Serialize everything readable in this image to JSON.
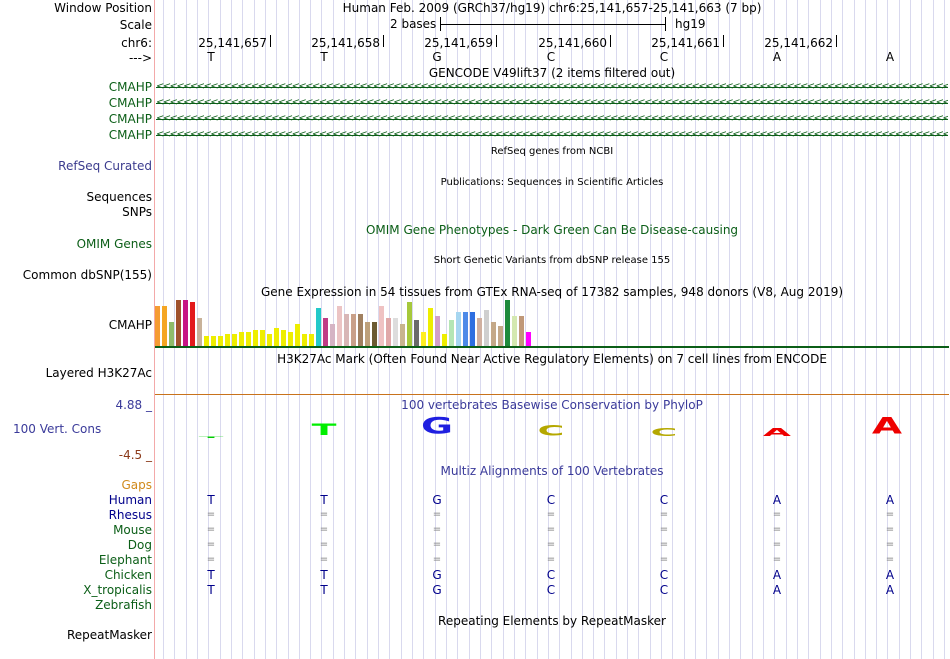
{
  "header": {
    "window_position_label": "Window Position",
    "window_position_value": "Human Feb. 2009 (GRCh37/hg19)   chr6:25,141,657-25,141,663 (7 bp)",
    "scale_label": "Scale",
    "scale_left": "2 bases",
    "scale_right": "hg19",
    "chrom_label": "chr6:",
    "strand_label": "--->",
    "coords": [
      "25,141,657",
      "25,141,658",
      "25,141,659",
      "25,141,660",
      "25,141,661",
      "25,141,662"
    ],
    "bases": [
      "T",
      "T",
      "G",
      "C",
      "C",
      "A",
      "A"
    ]
  },
  "gencode": {
    "title": "GENCODE V49lift37 (2 items filtered out)",
    "rows": [
      "CMAHP",
      "CMAHP",
      "CMAHP",
      "CMAHP"
    ]
  },
  "refseq": {
    "title": "RefSeq genes from NCBI",
    "label": "RefSeq Curated"
  },
  "publications": {
    "title": "Publications: Sequences in Scientific Articles",
    "label1": "Sequences",
    "label2": "SNPs"
  },
  "omim": {
    "title": "OMIM Gene Phenotypes - Dark Green Can Be Disease-causing",
    "label": "OMIM Genes"
  },
  "dbsnp": {
    "title": "Short Genetic Variants from dbSNP release 155",
    "label": "Common dbSNP(155)"
  },
  "gtex": {
    "title": "Gene Expression in 54 tissues from GTEx RNA-seq of 17382 samples, 948 donors (V8, Aug 2019)",
    "label": "CMAHP",
    "bars": [
      {
        "h": 40,
        "c": "#f59b32"
      },
      {
        "h": 40,
        "c": "#f5a623"
      },
      {
        "h": 24,
        "c": "#8fbc6a"
      },
      {
        "h": 46,
        "c": "#a0522d"
      },
      {
        "h": 46,
        "c": "#c71585"
      },
      {
        "h": 44,
        "c": "#e31a1c"
      },
      {
        "h": 28,
        "c": "#c8b29a"
      },
      {
        "h": 10,
        "c": "#eeee00"
      },
      {
        "h": 10,
        "c": "#eeee00"
      },
      {
        "h": 10,
        "c": "#eeee00"
      },
      {
        "h": 12,
        "c": "#eeee00"
      },
      {
        "h": 12,
        "c": "#eeee00"
      },
      {
        "h": 14,
        "c": "#eeee00"
      },
      {
        "h": 14,
        "c": "#eeee00"
      },
      {
        "h": 16,
        "c": "#eeee00"
      },
      {
        "h": 16,
        "c": "#eeee00"
      },
      {
        "h": 12,
        "c": "#eeee00"
      },
      {
        "h": 18,
        "c": "#eeee00"
      },
      {
        "h": 16,
        "c": "#eeee00"
      },
      {
        "h": 14,
        "c": "#eeee00"
      },
      {
        "h": 22,
        "c": "#eeee00"
      },
      {
        "h": 12,
        "c": "#eeee00"
      },
      {
        "h": 12,
        "c": "#eeee00"
      },
      {
        "h": 38,
        "c": "#23c9c9"
      },
      {
        "h": 28,
        "c": "#c03b85"
      },
      {
        "h": 22,
        "c": "#d5b4c4"
      },
      {
        "h": 40,
        "c": "#ecc4c4"
      },
      {
        "h": 32,
        "c": "#d8b6b6"
      },
      {
        "h": 32,
        "c": "#c9a089"
      },
      {
        "h": 32,
        "c": "#a08060"
      },
      {
        "h": 24,
        "c": "#bda07a"
      },
      {
        "h": 24,
        "c": "#6b5a32"
      },
      {
        "h": 40,
        "c": "#efc2c2"
      },
      {
        "h": 28,
        "c": "#e0a8a8"
      },
      {
        "h": 28,
        "c": "#dddddd"
      },
      {
        "h": 22,
        "c": "#c8b48e"
      },
      {
        "h": 44,
        "c": "#a6c83c"
      },
      {
        "h": 26,
        "c": "#6a6a6a"
      },
      {
        "h": 14,
        "c": "#ffee22"
      },
      {
        "h": 38,
        "c": "#eeee00"
      },
      {
        "h": 30,
        "c": "#d2a0c8"
      },
      {
        "h": 12,
        "c": "#eeee00"
      },
      {
        "h": 26,
        "c": "#b4e6b4"
      },
      {
        "h": 34,
        "c": "#a6d6f0"
      },
      {
        "h": 34,
        "c": "#4d8ae8"
      },
      {
        "h": 34,
        "c": "#2e6fe0"
      },
      {
        "h": 28,
        "c": "#d0b0a0"
      },
      {
        "h": 36,
        "c": "#cfcfcf"
      },
      {
        "h": 24,
        "c": "#c4a888"
      },
      {
        "h": 20,
        "c": "#c4a888"
      },
      {
        "h": 46,
        "c": "#1e8a3c"
      },
      {
        "h": 30,
        "c": "#d4e8b0"
      },
      {
        "h": 30,
        "c": "#c09878"
      },
      {
        "h": 14,
        "c": "#ff00ff"
      }
    ]
  },
  "h3k27ac": {
    "title": "H3K27Ac Mark (Often Found Near Active Regulatory Elements) on 7 cell lines from ENCODE",
    "label": "Layered H3K27Ac"
  },
  "conservation": {
    "title": "100 vertebrates Basewise Conservation by PhyloP",
    "label": "100 Vert. Cons",
    "max": "4.88 _",
    "min": "-4.5 _",
    "logo": [
      {
        "b": "T",
        "c": "#00cc00",
        "s": 0.05
      },
      {
        "b": "T",
        "c": "#00ee00",
        "s": 0.6
      },
      {
        "b": "G",
        "c": "#1f1fe0",
        "s": 0.85
      },
      {
        "b": "C",
        "c": "#b5a800",
        "s": 0.55
      },
      {
        "b": "C",
        "c": "#b5a800",
        "s": 0.4
      },
      {
        "b": "A",
        "c": "#ee0000",
        "s": 0.4
      },
      {
        "b": "A",
        "c": "#ee0000",
        "s": 0.85
      }
    ]
  },
  "multiz": {
    "title": "Multiz Alignments of 100 Vertebrates",
    "gaps_label": "Gaps",
    "species": [
      {
        "name": "Human",
        "color": "#00008b",
        "row": [
          "T",
          "T",
          "G",
          "C",
          "C",
          "A",
          "A"
        ]
      },
      {
        "name": "Rhesus",
        "color": "#00008b",
        "row": [
          "=",
          "=",
          "=",
          "=",
          "=",
          "=",
          "="
        ]
      },
      {
        "name": "Mouse",
        "color": "#0b5e17",
        "row": [
          "=",
          "=",
          "=",
          "=",
          "=",
          "=",
          "="
        ]
      },
      {
        "name": "Dog",
        "color": "#0b5e17",
        "row": [
          "=",
          "=",
          "=",
          "=",
          "=",
          "=",
          "="
        ]
      },
      {
        "name": "Elephant",
        "color": "#0b5e17",
        "row": [
          "=",
          "=",
          "=",
          "=",
          "=",
          "=",
          "="
        ]
      },
      {
        "name": "Chicken",
        "color": "#0b5e17",
        "row": [
          "T",
          "T",
          "G",
          "C",
          "C",
          "A",
          "A"
        ]
      },
      {
        "name": "X_tropicalis",
        "color": "#0b5e17",
        "row": [
          "T",
          "T",
          "G",
          "C",
          "C",
          "A",
          "A"
        ]
      },
      {
        "name": "Zebrafish",
        "color": "#0b5e17",
        "row": [
          "",
          "",
          "",
          "",
          "",
          "",
          ""
        ]
      }
    ]
  },
  "repeatmasker": {
    "title": "Repeating Elements by RepeatMasker",
    "label": "RepeatMasker"
  },
  "colors": {
    "green": "#0b5e17",
    "blue": "#3b3b8e",
    "orange": "#c8721b",
    "conservation_axis": "#3a3a9a",
    "conservation_min": "#8b3a1a"
  }
}
